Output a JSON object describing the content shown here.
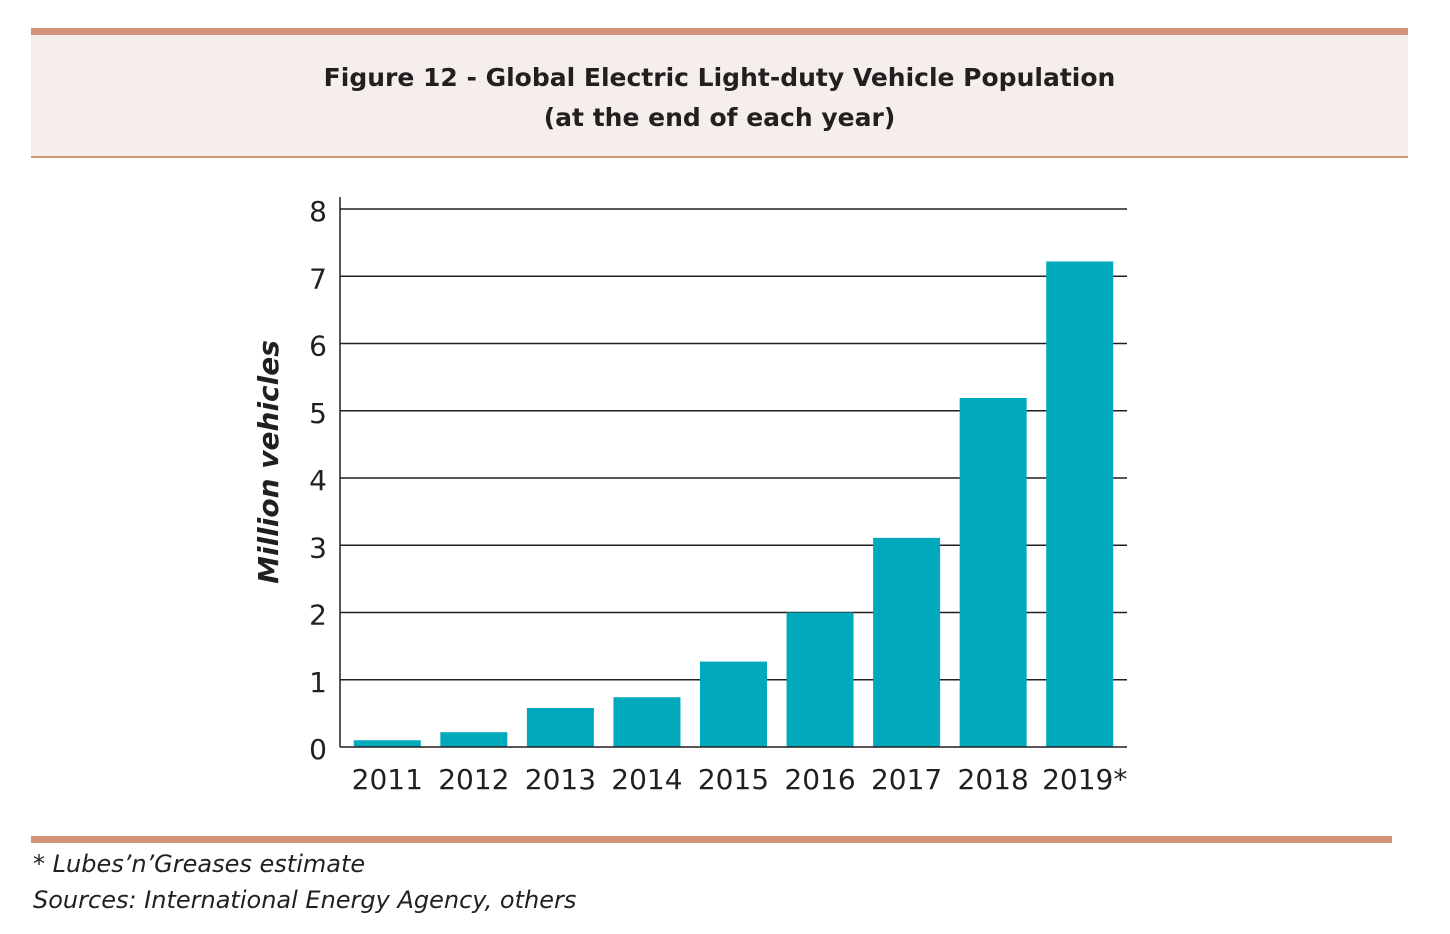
{
  "figure": {
    "title_line1": "Figure 12 - Global Electric Light-duty Vehicle Population",
    "title_line2": "(at the end of each year)"
  },
  "footnotes": {
    "estimate_note": "* Lubes’n’Greases estimate",
    "sources": "Sources: International Energy Agency, others"
  },
  "colors": {
    "bar": "#00a9bb",
    "accent_rule": "#d3957a",
    "header_background": "#f5eeea",
    "text": "#231f20"
  },
  "chart_data": {
    "type": "bar",
    "title": "Figure 12 - Global Electric Light-duty Vehicle Population",
    "subtitle": "(at the end of each year)",
    "xlabel": "",
    "ylabel": "Million vehicles",
    "categories": [
      "2011",
      "2012",
      "2013",
      "2014",
      "2015",
      "2016",
      "2017",
      "2018",
      "2019*"
    ],
    "values": [
      0.1,
      0.22,
      0.58,
      0.74,
      1.27,
      2.0,
      3.11,
      5.19,
      7.22
    ],
    "ylim": [
      0,
      8
    ],
    "yticks": [
      "0",
      "1",
      "2",
      "3",
      "4",
      "5",
      "6",
      "7",
      "8"
    ],
    "grid": "horizontal",
    "legend": "none"
  }
}
